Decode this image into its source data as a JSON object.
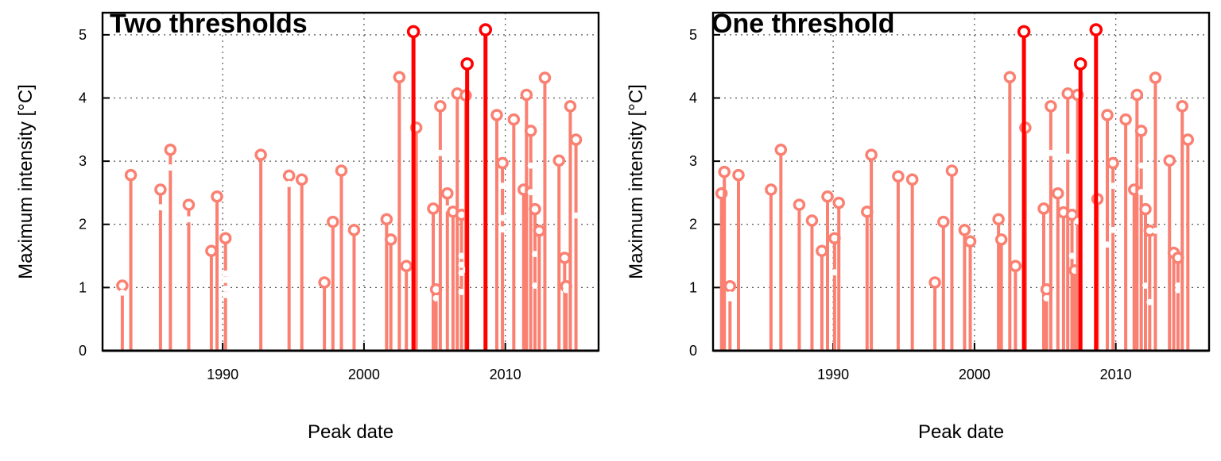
{
  "chart_data": [
    {
      "type": "scatter",
      "title": "Two thresholds",
      "xlabel": "Peak date",
      "ylabel": "Maximum intensity [°C]",
      "xlim": [
        1981.5,
        2016.6
      ],
      "ylim": [
        0,
        5.35
      ],
      "x_ticks": [
        1990,
        2000,
        2010
      ],
      "y_ticks": [
        0,
        1,
        2,
        3,
        4,
        5
      ],
      "grid": true,
      "colors": {
        "normal": "#FA8072",
        "highlight": "#FF0000",
        "frame": "#000000"
      },
      "events": [
        {
          "x": 1982.9,
          "y": [
            1.03,
            0.92
          ],
          "highlight": false
        },
        {
          "x": 1983.5,
          "y": [
            2.78
          ],
          "highlight": false
        },
        {
          "x": 1985.6,
          "y": [
            2.55,
            2.27
          ],
          "highlight": false
        },
        {
          "x": 1986.3,
          "y": [
            3.18,
            2.9
          ],
          "highlight": false
        },
        {
          "x": 1987.6,
          "y": [
            2.31,
            2.08
          ],
          "highlight": false
        },
        {
          "x": 1989.2,
          "y": [
            1.58
          ],
          "highlight": false
        },
        {
          "x": 1989.6,
          "y": [
            2.44
          ],
          "highlight": false
        },
        {
          "x": 1990.2,
          "y": [
            1.78,
            1.22,
            1.12,
            0.98,
            0.88
          ],
          "highlight": false
        },
        {
          "x": 1992.7,
          "y": [
            3.1
          ],
          "highlight": false
        },
        {
          "x": 1994.7,
          "y": [
            2.77,
            2.64
          ],
          "highlight": false
        },
        {
          "x": 1995.6,
          "y": [
            2.71
          ],
          "highlight": false
        },
        {
          "x": 1997.2,
          "y": [
            1.08
          ],
          "highlight": false
        },
        {
          "x": 1997.8,
          "y": [
            2.04
          ],
          "highlight": false
        },
        {
          "x": 1998.4,
          "y": [
            2.85
          ],
          "highlight": false
        },
        {
          "x": 1999.3,
          "y": [
            1.91
          ],
          "highlight": false
        },
        {
          "x": 2001.6,
          "y": [
            2.08
          ],
          "highlight": false
        },
        {
          "x": 2001.9,
          "y": [
            1.76
          ],
          "highlight": false
        },
        {
          "x": 2002.5,
          "y": [
            4.33
          ],
          "highlight": false
        },
        {
          "x": 2003.0,
          "y": [
            1.34
          ],
          "highlight": false
        },
        {
          "x": 2003.5,
          "y": [
            5.05
          ],
          "highlight": true
        },
        {
          "x": 2003.7,
          "y": [
            3.53
          ],
          "highlight": false
        },
        {
          "x": 2004.9,
          "y": [
            2.25
          ],
          "highlight": false
        },
        {
          "x": 2005.1,
          "y": [
            0.97,
            0.83
          ],
          "highlight": false
        },
        {
          "x": 2005.4,
          "y": [
            3.87,
            3.13
          ],
          "highlight": false
        },
        {
          "x": 2005.9,
          "y": [
            2.49,
            2.25
          ],
          "highlight": false
        },
        {
          "x": 2006.3,
          "y": [
            2.2
          ],
          "highlight": false
        },
        {
          "x": 2006.6,
          "y": [
            4.07
          ],
          "highlight": false
        },
        {
          "x": 2006.9,
          "y": [
            2.15,
            1.5,
            1.36,
            1.23,
            0.93
          ],
          "highlight": false
        },
        {
          "x": 2007.3,
          "y": [
            4.54
          ],
          "highlight": true
        },
        {
          "x": 2007.2,
          "y": [
            4.04,
            1.28
          ],
          "highlight": false
        },
        {
          "x": 2008.6,
          "y": [
            5.08
          ],
          "highlight": true
        },
        {
          "x": 2009.4,
          "y": [
            3.73
          ],
          "highlight": false
        },
        {
          "x": 2009.8,
          "y": [
            2.97,
            2.61,
            2.1,
            1.92
          ],
          "highlight": false
        },
        {
          "x": 2010.6,
          "y": [
            3.66
          ],
          "highlight": false
        },
        {
          "x": 2011.3,
          "y": [
            2.55
          ],
          "highlight": false
        },
        {
          "x": 2011.5,
          "y": [
            4.05
          ],
          "highlight": false
        },
        {
          "x": 2011.8,
          "y": [
            3.48,
            2.93,
            2.51
          ],
          "highlight": false
        },
        {
          "x": 2012.1,
          "y": [
            2.24,
            1.53,
            1.03
          ],
          "highlight": false
        },
        {
          "x": 2012.4,
          "y": [
            1.9
          ],
          "highlight": false
        },
        {
          "x": 2012.8,
          "y": [
            4.32
          ],
          "highlight": false
        },
        {
          "x": 2013.8,
          "y": [
            3.01
          ],
          "highlight": false
        },
        {
          "x": 2014.2,
          "y": [
            1.47
          ],
          "highlight": false
        },
        {
          "x": 2014.3,
          "y": [
            1.02,
            0.96
          ],
          "highlight": false
        },
        {
          "x": 2014.6,
          "y": [
            3.87
          ],
          "highlight": false
        },
        {
          "x": 2015.0,
          "y": [
            3.34,
            2.14
          ],
          "highlight": false
        }
      ]
    },
    {
      "type": "scatter",
      "title": "One threshold",
      "xlabel": "Peak date",
      "ylabel": "Maximum intensity [°C]",
      "xlim": [
        1981.5,
        2016.6
      ],
      "ylim": [
        0,
        5.35
      ],
      "x_ticks": [
        1990,
        2000,
        2010
      ],
      "y_ticks": [
        0,
        1,
        2,
        3,
        4,
        5
      ],
      "grid": true,
      "colors": {
        "normal": "#FA8072",
        "highlight": "#FF0000",
        "frame": "#000000"
      },
      "events": [
        {
          "x": 1982.1,
          "y": [
            2.49
          ],
          "highlight": false
        },
        {
          "x": 1982.3,
          "y": [
            2.83
          ],
          "highlight": false
        },
        {
          "x": 1982.7,
          "y": [
            1.02,
            0.89,
            0.83
          ],
          "highlight": false
        },
        {
          "x": 1983.3,
          "y": [
            2.78
          ],
          "highlight": false
        },
        {
          "x": 1985.6,
          "y": [
            2.55
          ],
          "highlight": false
        },
        {
          "x": 1986.3,
          "y": [
            3.18
          ],
          "highlight": false
        },
        {
          "x": 1987.6,
          "y": [
            2.31
          ],
          "highlight": false
        },
        {
          "x": 1988.5,
          "y": [
            2.06
          ],
          "highlight": false
        },
        {
          "x": 1989.2,
          "y": [
            1.58
          ],
          "highlight": false
        },
        {
          "x": 1989.6,
          "y": [
            2.44
          ],
          "highlight": false
        },
        {
          "x": 1990.1,
          "y": [
            1.78,
            1.24
          ],
          "highlight": false
        },
        {
          "x": 1990.4,
          "y": [
            2.34
          ],
          "highlight": false
        },
        {
          "x": 1992.4,
          "y": [
            2.2
          ],
          "highlight": false
        },
        {
          "x": 1992.7,
          "y": [
            3.1
          ],
          "highlight": false
        },
        {
          "x": 1994.6,
          "y": [
            2.76
          ],
          "highlight": false
        },
        {
          "x": 1995.6,
          "y": [
            2.71
          ],
          "highlight": false
        },
        {
          "x": 1997.2,
          "y": [
            1.08
          ],
          "highlight": false
        },
        {
          "x": 1997.8,
          "y": [
            2.04
          ],
          "highlight": false
        },
        {
          "x": 1998.4,
          "y": [
            2.85
          ],
          "highlight": false
        },
        {
          "x": 1999.3,
          "y": [
            1.91
          ],
          "highlight": false
        },
        {
          "x": 1999.7,
          "y": [
            1.73
          ],
          "highlight": false
        },
        {
          "x": 2001.7,
          "y": [
            2.08
          ],
          "highlight": false
        },
        {
          "x": 2001.9,
          "y": [
            1.76
          ],
          "highlight": false
        },
        {
          "x": 2002.5,
          "y": [
            4.33
          ],
          "highlight": false
        },
        {
          "x": 2002.9,
          "y": [
            1.34
          ],
          "highlight": false
        },
        {
          "x": 2003.5,
          "y": [
            5.05
          ],
          "highlight": true
        },
        {
          "x": 2003.6,
          "y": [
            3.53
          ],
          "highlight": false
        },
        {
          "x": 2004.9,
          "y": [
            2.25
          ],
          "highlight": false
        },
        {
          "x": 2005.1,
          "y": [
            0.97,
            0.83
          ],
          "highlight": false
        },
        {
          "x": 2005.4,
          "y": [
            3.87,
            3.13
          ],
          "highlight": false
        },
        {
          "x": 2005.9,
          "y": [
            2.49
          ],
          "highlight": false
        },
        {
          "x": 2006.3,
          "y": [
            2.19
          ],
          "highlight": false
        },
        {
          "x": 2006.6,
          "y": [
            4.07,
            3.07
          ],
          "highlight": false
        },
        {
          "x": 2006.9,
          "y": [
            2.15,
            1.5
          ],
          "highlight": false
        },
        {
          "x": 2007.1,
          "y": [
            1.27
          ],
          "highlight": false
        },
        {
          "x": 2007.3,
          "y": [
            4.05,
            2.05
          ],
          "highlight": false
        },
        {
          "x": 2007.5,
          "y": [
            4.54
          ],
          "highlight": true
        },
        {
          "x": 2008.6,
          "y": [
            5.08
          ],
          "highlight": true
        },
        {
          "x": 2008.7,
          "y": [
            2.4
          ],
          "highlight": false
        },
        {
          "x": 2009.4,
          "y": [
            3.73,
            1.68
          ],
          "highlight": false
        },
        {
          "x": 2009.8,
          "y": [
            2.97,
            2.61,
            1.91
          ],
          "highlight": false
        },
        {
          "x": 2010.7,
          "y": [
            3.66
          ],
          "highlight": false
        },
        {
          "x": 2011.3,
          "y": [
            2.55
          ],
          "highlight": false
        },
        {
          "x": 2011.5,
          "y": [
            4.05
          ],
          "highlight": false
        },
        {
          "x": 2011.8,
          "y": [
            3.48,
            2.93,
            2.51
          ],
          "highlight": false
        },
        {
          "x": 2012.1,
          "y": [
            2.24,
            1.03
          ],
          "highlight": false
        },
        {
          "x": 2012.4,
          "y": [
            1.9,
            0.77
          ],
          "highlight": false
        },
        {
          "x": 2012.8,
          "y": [
            4.32,
            1.9
          ],
          "highlight": false
        },
        {
          "x": 2013.8,
          "y": [
            3.01
          ],
          "highlight": false
        },
        {
          "x": 2014.1,
          "y": [
            1.55
          ],
          "highlight": false
        },
        {
          "x": 2014.4,
          "y": [
            1.47,
            1.03,
            0.96
          ],
          "highlight": false
        },
        {
          "x": 2014.7,
          "y": [
            3.87
          ],
          "highlight": false
        },
        {
          "x": 2015.1,
          "y": [
            3.34
          ],
          "highlight": false
        }
      ]
    }
  ]
}
